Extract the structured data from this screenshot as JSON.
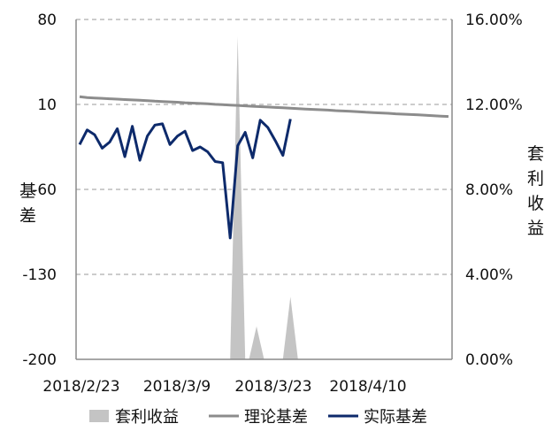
{
  "chart_data": {
    "type": "line",
    "title": "",
    "x_ticks": [
      "2018/2/23",
      "2018/3/9",
      "2018/3/23",
      "2018/4/10"
    ],
    "y_left": {
      "label": "基差",
      "ticks": [
        "80",
        "10",
        "-60",
        "-130",
        "-200"
      ],
      "range": [
        -200,
        80
      ]
    },
    "y_right": {
      "label": "套利收益",
      "ticks": [
        "16.00%",
        "12.00%",
        "8.00%",
        "4.00%",
        "0.00%"
      ],
      "range": [
        0,
        0.16
      ]
    },
    "grid": "horizontal dashed",
    "legend_position": "bottom",
    "legend": {
      "area": "套利收益",
      "theory": "理论基差",
      "actual": "实际基差"
    },
    "colors": {
      "area": "#c4c4c4",
      "theory": "#8c8c8c",
      "actual": "#0d2a6b"
    },
    "series": [
      {
        "name": "理论基差",
        "axis": "left",
        "values": [
          16.4,
          15.6,
          15.3,
          15.0,
          14.7,
          14.4,
          14.0,
          13.7,
          13.4,
          13.1,
          12.7,
          12.4,
          12.1,
          11.8,
          11.4,
          11.1,
          10.8,
          10.5,
          10.1,
          9.8,
          9.5,
          9.2,
          8.8,
          8.5,
          8.2,
          7.9,
          7.5,
          7.2,
          6.9,
          6.6,
          6.2,
          5.9,
          5.6,
          5.3,
          4.9,
          4.6,
          4.3,
          4.0,
          3.6,
          3.3,
          3.0,
          2.7,
          2.3,
          2.0,
          1.7,
          1.4,
          1.0,
          0.7,
          0.4,
          0.1
        ]
      },
      {
        "name": "实际基差",
        "axis": "left",
        "values": [
          -23,
          -11,
          -15,
          -26,
          -21,
          -10,
          -33,
          -8,
          -36,
          -16,
          -7,
          -6,
          -23,
          -16,
          -12,
          -28,
          -25,
          -29,
          -37,
          -38,
          -100,
          -24,
          -13,
          -34,
          -3,
          -9,
          -20,
          -32,
          -2
        ],
        "x_start_index": 0
      },
      {
        "name": "套利收益",
        "axis": "right",
        "type": "area",
        "segments": [
          {
            "start_index": 19,
            "points": [
              0.0,
              0.0,
              0.152,
              0.0
            ]
          },
          {
            "start_index": 22.5,
            "points": [
              0.0,
              0.0155,
              0.0
            ]
          },
          {
            "start_index": 27,
            "points": [
              0.0,
              0.0295,
              0.0
            ]
          }
        ]
      }
    ],
    "x_count": 50
  }
}
